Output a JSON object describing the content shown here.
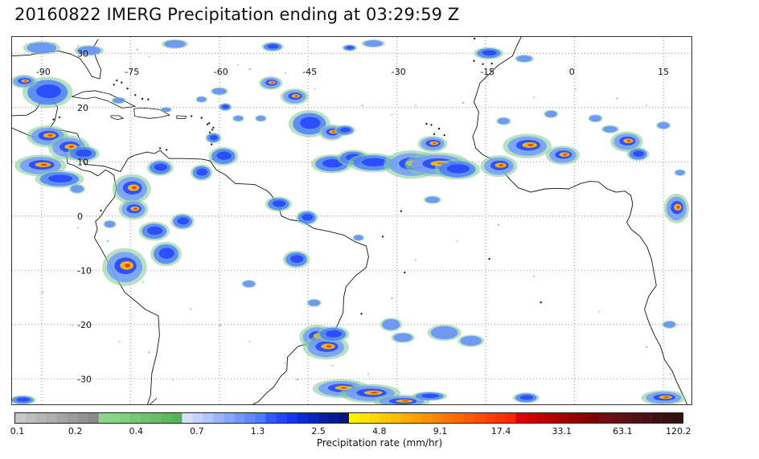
{
  "title": "20160822 IMERG Precipitation ending at 03:29:59 Z",
  "map": {
    "longitude_labels": [
      "-90",
      "-75",
      "-60",
      "-45",
      "-30",
      "-15",
      "0",
      "15"
    ],
    "latitude_labels": [
      "30",
      "20",
      "10",
      "0",
      "-10",
      "-20",
      "-30"
    ],
    "grid_style": "dotted",
    "region": "Western Atlantic, Caribbean, South America and Africa",
    "extent": {
      "lon_min": -95,
      "lon_max": 20,
      "lat_min": -35,
      "lat_max": 33
    },
    "colors": {
      "coast": "#111111",
      "grid": "#777777",
      "storm_core": "#ff6a00",
      "storm_mid": "#3b67ff",
      "storm_light": "#7fcd8e"
    }
  },
  "legend": {
    "title": "Precipitation rate (mm/hr)",
    "tick_labels": [
      "0.1",
      "0.2",
      "0.4",
      "0.7",
      "1.3",
      "2.5",
      "4.8",
      "9.1",
      "17.4",
      "33.1",
      "63.1",
      "120.2"
    ],
    "palette": [
      "#c8c8c8",
      "#bfbfbf",
      "#b6b6b6",
      "#adadad",
      "#a4a4a4",
      "#9b9b9b",
      "#929292",
      "#898989",
      "#8ed48e",
      "#86d686",
      "#7fd07f",
      "#76c876",
      "#6ec36e",
      "#66bf66",
      "#5eb95e",
      "#55b455",
      "#d7e0ff",
      "#c3d2ff",
      "#b0c5ff",
      "#9ab6ff",
      "#86a7ff",
      "#7399ff",
      "#5f8aff",
      "#4a7cff",
      "#3559ff",
      "#2446ff",
      "#1637f2",
      "#0d2ad6",
      "#0a24bf",
      "#081fa8",
      "#061a92",
      "#05167f",
      "#fff200",
      "#ffe300",
      "#ffd700",
      "#ffc900",
      "#ffbc00",
      "#ffad00",
      "#ff9f00",
      "#ff9100",
      "#ff8300",
      "#ff7500",
      "#ff6800",
      "#ff5a00",
      "#ff4c00",
      "#ff3f00",
      "#ff3200",
      "#ff2500",
      "#e00000",
      "#d00000",
      "#c10000",
      "#b30000",
      "#a60000",
      "#980000",
      "#8a0000",
      "#7d0000",
      "#701010",
      "#641010",
      "#5a1111",
      "#501111",
      "#471212",
      "#3f1212",
      "#381111",
      "#301010"
    ]
  }
}
